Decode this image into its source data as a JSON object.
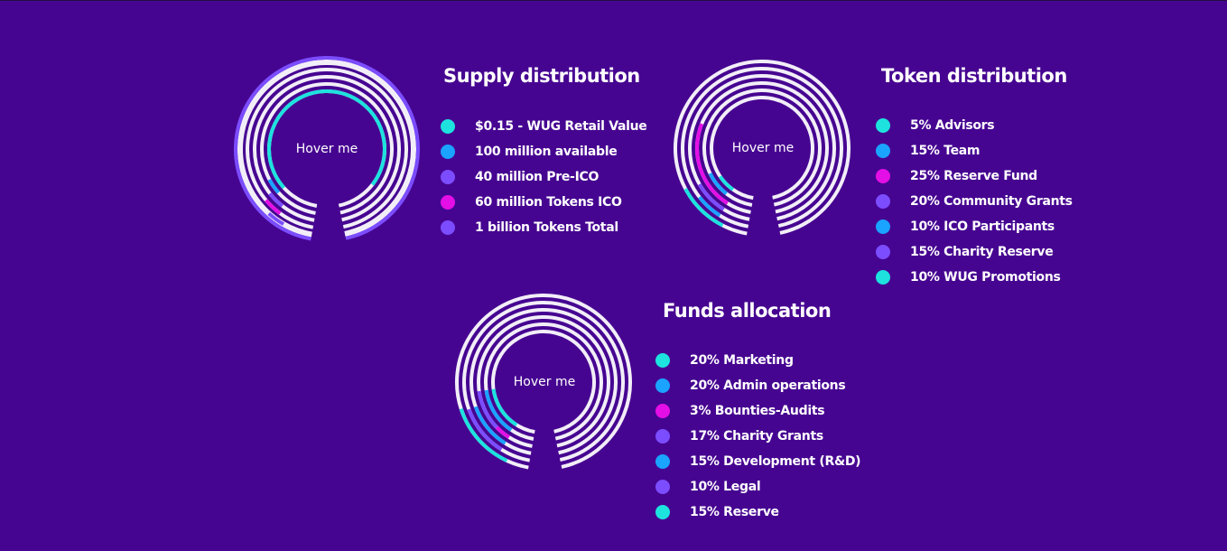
{
  "charts": [
    {
      "id": "supply",
      "title": "Supply distribution",
      "hover_text": "Hover me",
      "legend": [
        {
          "label": "$0.15 - WUG Retail Value",
          "color": "#1de2de"
        },
        {
          "label": "100 million available",
          "color": "#1aa3ff"
        },
        {
          "label": "40 million Pre-ICO",
          "color": "#7b4dff"
        },
        {
          "label": "60 million Tokens ICO",
          "color": "#e40fe6"
        },
        {
          "label": "1 billion Tokens Total",
          "color": "#7b4dff"
        }
      ]
    },
    {
      "id": "token",
      "title": "Token distribution",
      "hover_text": "Hover me",
      "legend": [
        {
          "label": "5% Advisors",
          "color": "#1de2de"
        },
        {
          "label": "15% Team",
          "color": "#1aa3ff"
        },
        {
          "label": "25% Reserve Fund",
          "color": "#e40fe6"
        },
        {
          "label": "20% Community Grants",
          "color": "#7b4dff"
        },
        {
          "label": "10% ICO Participants",
          "color": "#1aa3ff"
        },
        {
          "label": "15% Charity Reserve",
          "color": "#7b4dff"
        },
        {
          "label": "10% WUG Promotions",
          "color": "#1de2de"
        }
      ]
    },
    {
      "id": "funds",
      "title": "Funds allocation",
      "hover_text": "Hover me",
      "legend": [
        {
          "label": "20% Marketing",
          "color": "#1de2de"
        },
        {
          "label": "20% Admin operations",
          "color": "#1aa3ff"
        },
        {
          "label": "3% Bounties-Audits",
          "color": "#e40fe6"
        },
        {
          "label": "17% Charity Grants",
          "color": "#7b4dff"
        },
        {
          "label": "15% Development (R&D)",
          "color": "#1aa3ff"
        },
        {
          "label": "10% Legal",
          "color": "#7b4dff"
        },
        {
          "label": "15% Reserve",
          "color": "#1de2de"
        }
      ]
    }
  ],
  "colors": {
    "background": "#460591",
    "track": "#f2eef8",
    "cyan": "#1de2de",
    "blue": "#1aa3ff",
    "violet": "#7b4dff",
    "magenta": "#e40fe6"
  }
}
